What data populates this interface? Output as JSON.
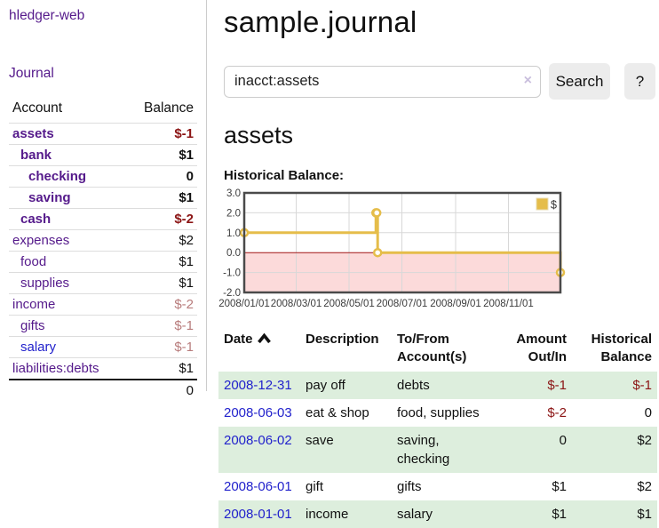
{
  "colors": {
    "link_purple": "#551a8b",
    "link_blue": "#2222cc",
    "negative": "#8b1414",
    "negative_muted": "#b87c7c",
    "row_shade_green": "#ddeedd",
    "series_gold": "#e5bd4a",
    "chart_negative_region": "#fcdada",
    "chart_zero_line": "#a11515",
    "grid_gray": "#d8d8d8"
  },
  "sidebar": {
    "app_title": "hledger-web",
    "journal_label": "Journal",
    "accounts_table": {
      "headers": {
        "account": "Account",
        "balance": "Balance"
      },
      "rows": [
        {
          "account": "assets",
          "balance": "$-1",
          "indent": 1,
          "bold": true,
          "balance_tone": "negative"
        },
        {
          "account": "bank",
          "balance": "$1",
          "indent": 2,
          "bold": true,
          "balance_tone": "normal"
        },
        {
          "account": "checking",
          "balance": "0",
          "indent": 3,
          "bold": true,
          "balance_tone": "normal"
        },
        {
          "account": "saving",
          "balance": "$1",
          "indent": 3,
          "bold": true,
          "balance_tone": "normal"
        },
        {
          "account": "cash",
          "balance": "$-2",
          "indent": 2,
          "bold": true,
          "balance_tone": "negative"
        },
        {
          "account": "expenses",
          "balance": "$2",
          "indent": 1,
          "bold": false,
          "balance_tone": "normal"
        },
        {
          "account": "food",
          "balance": "$1",
          "indent": 2,
          "bold": false,
          "balance_tone": "normal"
        },
        {
          "account": "supplies",
          "balance": "$1",
          "indent": 2,
          "bold": false,
          "balance_tone": "normal"
        },
        {
          "account": "income",
          "balance": "$-2",
          "indent": 1,
          "bold": false,
          "balance_tone": "negative-muted"
        },
        {
          "account": "gifts",
          "balance": "$-1",
          "indent": 2,
          "bold": false,
          "balance_tone": "negative-muted"
        },
        {
          "account": "salary",
          "balance": "$-1",
          "indent": 2,
          "bold": false,
          "balance_tone": "negative-muted",
          "link_tone": "blue"
        },
        {
          "account": "liabilities:debts",
          "balance": "$1",
          "indent": 1,
          "bold": false,
          "balance_tone": "normal"
        }
      ],
      "total": "0"
    }
  },
  "main": {
    "page_title": "sample.journal",
    "search": {
      "value": "inacct:assets",
      "clear_icon": "×",
      "search_button_label": "Search",
      "help_button_label": "?"
    },
    "account_heading": "assets",
    "chart_label": "Historical Balance:"
  },
  "chart_data": {
    "type": "line",
    "mode": "steps",
    "title": "Historical Balance",
    "xlim": [
      "2008-01-01",
      "2008-12-31"
    ],
    "ylim": [
      -2,
      3
    ],
    "y_ticks": [
      3,
      2,
      1,
      0,
      -1,
      -2
    ],
    "x_ticks": [
      "2008/01/01",
      "2008/03/01",
      "2008/05/01",
      "2008/07/01",
      "2008/09/01",
      "2008/11/01"
    ],
    "series": [
      {
        "name": "$",
        "color": "#e5bd4a",
        "points": [
          [
            "2008-01-01",
            1
          ],
          [
            "2008-06-01",
            2
          ],
          [
            "2008-06-02",
            2
          ],
          [
            "2008-06-03",
            0
          ],
          [
            "2008-12-31",
            -1
          ]
        ]
      }
    ],
    "legend": {
      "label": "$",
      "position": "top-right"
    },
    "negative_region_color": "#fcdada",
    "zero_line_color": "#a11515",
    "grid": true
  },
  "register": {
    "headers": {
      "date": "Date",
      "description": "Description",
      "accounts": "To/From Account(s)",
      "amount": "Amount Out/In",
      "balance": "Historical Balance"
    },
    "sort_icon": "chevron-up",
    "rows": [
      {
        "date": "2008-12-31",
        "description": "pay off",
        "accounts": "debts",
        "amount": "$-1",
        "balance": "$-1",
        "amount_negative": true,
        "balance_negative": true
      },
      {
        "date": "2008-06-03",
        "description": "eat & shop",
        "accounts": "food, supplies",
        "amount": "$-2",
        "balance": "0",
        "amount_negative": true,
        "balance_negative": false
      },
      {
        "date": "2008-06-02",
        "description": "save",
        "accounts": "saving, checking",
        "amount": "0",
        "balance": "$2",
        "amount_negative": false,
        "balance_negative": false
      },
      {
        "date": "2008-06-01",
        "description": "gift",
        "accounts": "gifts",
        "amount": "$1",
        "balance": "$2",
        "amount_negative": false,
        "balance_negative": false
      },
      {
        "date": "2008-01-01",
        "description": "income",
        "accounts": "salary",
        "amount": "$1",
        "balance": "$1",
        "amount_negative": false,
        "balance_negative": false
      }
    ]
  }
}
